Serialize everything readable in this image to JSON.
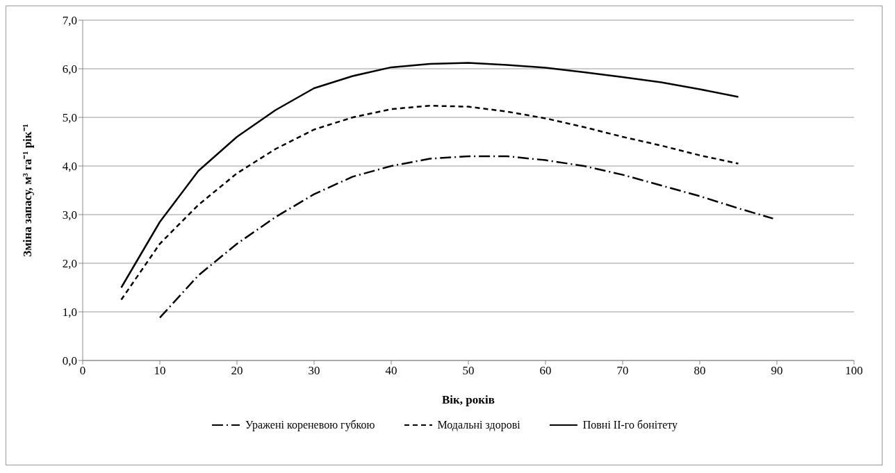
{
  "chart_data": {
    "type": "line",
    "xlabel": "Вік, років",
    "ylabel": "Зміна запасу, м³ га⁻¹ рік⁻¹",
    "xlim": [
      0,
      100
    ],
    "xticks": [
      0,
      10,
      20,
      30,
      40,
      50,
      60,
      70,
      80,
      90,
      100
    ],
    "ylim": [
      0,
      7
    ],
    "yticks": [
      {
        "value": 0,
        "label": "0,0"
      },
      {
        "value": 1,
        "label": "1,0"
      },
      {
        "value": 2,
        "label": "2,0"
      },
      {
        "value": 3,
        "label": "3,0"
      },
      {
        "value": 4,
        "label": "4,0"
      },
      {
        "value": 5,
        "label": "5,0"
      },
      {
        "value": 6,
        "label": "6,0"
      },
      {
        "value": 7,
        "label": "7,0"
      }
    ],
    "grid": "y",
    "legend": "bottom",
    "marker": "none",
    "series": [
      {
        "name": "Уражені кореневою губкою",
        "color": "#000000",
        "line_style": "dashdot",
        "x": [
          10,
          15,
          20,
          25,
          30,
          35,
          40,
          45,
          50,
          55,
          60,
          65,
          70,
          75,
          80,
          85,
          89.5
        ],
        "values": [
          0.88,
          1.75,
          2.4,
          2.95,
          3.42,
          3.78,
          4.0,
          4.15,
          4.2,
          4.2,
          4.12,
          4.0,
          3.82,
          3.6,
          3.38,
          3.13,
          2.92
        ]
      },
      {
        "name": "Модальні здорові",
        "color": "#000000",
        "line_style": "dashed",
        "x": [
          5,
          10,
          15,
          20,
          25,
          30,
          35,
          40,
          45,
          50,
          55,
          60,
          65,
          70,
          75,
          80,
          85
        ],
        "values": [
          1.25,
          2.4,
          3.2,
          3.85,
          4.35,
          4.75,
          5.0,
          5.17,
          5.24,
          5.22,
          5.12,
          4.98,
          4.8,
          4.6,
          4.42,
          4.22,
          4.05
        ]
      },
      {
        "name": "Повні ІІ-го бонітету",
        "color": "#000000",
        "line_style": "solid",
        "x": [
          5,
          10,
          15,
          20,
          25,
          30,
          35,
          40,
          45,
          50,
          55,
          60,
          65,
          70,
          75,
          80,
          85
        ],
        "values": [
          1.5,
          2.85,
          3.9,
          4.6,
          5.15,
          5.6,
          5.85,
          6.03,
          6.1,
          6.12,
          6.08,
          6.02,
          5.93,
          5.83,
          5.72,
          5.58,
          5.42
        ]
      }
    ]
  }
}
